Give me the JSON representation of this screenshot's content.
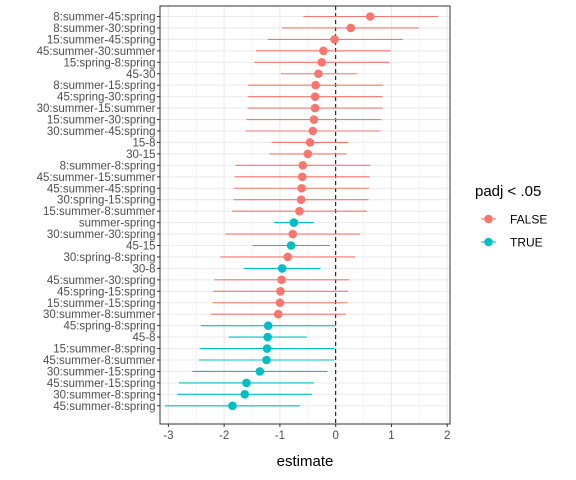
{
  "chart_data": {
    "type": "forest",
    "xlabel": "estimate",
    "ylabel": "",
    "xlim": [
      -3.15,
      2.05
    ],
    "x_ticks": [
      "-3",
      "-2",
      "-1",
      "0",
      "1",
      "2"
    ],
    "x_tick_values": [
      -3,
      -2,
      -1,
      0,
      1,
      2
    ],
    "reference_line_x": 0,
    "grid": true,
    "legend": {
      "title": "padj < .05",
      "placement": "right",
      "entries": [
        {
          "label": "FALSE",
          "color": "#F8766D"
        },
        {
          "label": "TRUE",
          "color": "#00BFC4"
        }
      ]
    },
    "rows": [
      {
        "label": "8:summer-45:spring",
        "estimate": 0.62,
        "low": -0.58,
        "high": 1.84,
        "sig": "FALSE"
      },
      {
        "label": "8:summer-30:spring",
        "estimate": 0.27,
        "low": -0.96,
        "high": 1.49,
        "sig": "FALSE"
      },
      {
        "label": "15:summer-45:spring",
        "estimate": -0.02,
        "low": -1.22,
        "high": 1.2,
        "sig": "FALSE"
      },
      {
        "label": "45:summer-30:summer",
        "estimate": -0.22,
        "low": -1.43,
        "high": 0.99,
        "sig": "FALSE"
      },
      {
        "label": "15:spring-8:spring",
        "estimate": -0.25,
        "low": -1.46,
        "high": 0.96,
        "sig": "FALSE"
      },
      {
        "label": "45-30",
        "estimate": -0.31,
        "low": -0.98,
        "high": 0.38,
        "sig": "FALSE"
      },
      {
        "label": "8:summer-15:spring",
        "estimate": -0.36,
        "low": -1.57,
        "high": 0.85,
        "sig": "FALSE"
      },
      {
        "label": "45:spring-30:spring",
        "estimate": -0.37,
        "low": -1.58,
        "high": 0.84,
        "sig": "FALSE"
      },
      {
        "label": "30:summer-15:summer",
        "estimate": -0.37,
        "low": -1.58,
        "high": 0.84,
        "sig": "FALSE"
      },
      {
        "label": "15:summer-30:spring",
        "estimate": -0.39,
        "low": -1.6,
        "high": 0.82,
        "sig": "FALSE"
      },
      {
        "label": "30:summer-45:spring",
        "estimate": -0.41,
        "low": -1.62,
        "high": 0.8,
        "sig": "FALSE"
      },
      {
        "label": "15-8",
        "estimate": -0.46,
        "low": -1.15,
        "high": 0.23,
        "sig": "FALSE"
      },
      {
        "label": "30-15",
        "estimate": -0.5,
        "low": -1.19,
        "high": 0.19,
        "sig": "FALSE"
      },
      {
        "label": "8:summer-8:spring",
        "estimate": -0.59,
        "low": -1.8,
        "high": 0.62,
        "sig": "FALSE"
      },
      {
        "label": "45:summer-15:summer",
        "estimate": -0.6,
        "low": -1.81,
        "high": 0.61,
        "sig": "FALSE"
      },
      {
        "label": "45:summer-45:spring",
        "estimate": -0.61,
        "low": -1.82,
        "high": 0.6,
        "sig": "FALSE"
      },
      {
        "label": "30:spring-15:spring",
        "estimate": -0.62,
        "low": -1.83,
        "high": 0.59,
        "sig": "FALSE"
      },
      {
        "label": "15:summer-8:summer",
        "estimate": -0.65,
        "low": -1.86,
        "high": 0.56,
        "sig": "FALSE"
      },
      {
        "label": "summer-spring",
        "estimate": -0.75,
        "low": -1.11,
        "high": -0.39,
        "sig": "TRUE"
      },
      {
        "label": "30:summer-30:spring",
        "estimate": -0.77,
        "low": -1.98,
        "high": 0.44,
        "sig": "FALSE"
      },
      {
        "label": "45-15",
        "estimate": -0.8,
        "low": -1.49,
        "high": -0.11,
        "sig": "TRUE"
      },
      {
        "label": "30:spring-8:spring",
        "estimate": -0.86,
        "low": -2.07,
        "high": 0.35,
        "sig": "FALSE"
      },
      {
        "label": "30-8",
        "estimate": -0.96,
        "low": -1.65,
        "high": -0.27,
        "sig": "TRUE"
      },
      {
        "label": "45:summer-30:spring",
        "estimate": -0.97,
        "low": -2.18,
        "high": 0.24,
        "sig": "FALSE"
      },
      {
        "label": "45:spring-15:spring",
        "estimate": -0.99,
        "low": -2.2,
        "high": 0.22,
        "sig": "FALSE"
      },
      {
        "label": "15:summer-15:spring",
        "estimate": -1.0,
        "low": -2.21,
        "high": 0.21,
        "sig": "FALSE"
      },
      {
        "label": "30:summer-8:summer",
        "estimate": -1.03,
        "low": -2.24,
        "high": 0.18,
        "sig": "FALSE"
      },
      {
        "label": "45:spring-8:spring",
        "estimate": -1.21,
        "low": -2.42,
        "high": 0.0,
        "sig": "TRUE"
      },
      {
        "label": "45-8",
        "estimate": -1.22,
        "low": -1.92,
        "high": -0.52,
        "sig": "TRUE"
      },
      {
        "label": "15:summer-8:spring",
        "estimate": -1.23,
        "low": -2.44,
        "high": -0.02,
        "sig": "TRUE"
      },
      {
        "label": "45:summer-8:summer",
        "estimate": -1.24,
        "low": -2.45,
        "high": -0.03,
        "sig": "TRUE"
      },
      {
        "label": "30:summer-15:spring",
        "estimate": -1.36,
        "low": -2.57,
        "high": -0.15,
        "sig": "TRUE"
      },
      {
        "label": "45:summer-15:spring",
        "estimate": -1.6,
        "low": -2.81,
        "high": -0.39,
        "sig": "TRUE"
      },
      {
        "label": "30:summer-8:spring",
        "estimate": -1.63,
        "low": -2.84,
        "high": -0.42,
        "sig": "TRUE"
      },
      {
        "label": "45:summer-8:spring",
        "estimate": -1.85,
        "low": -3.06,
        "high": -0.64,
        "sig": "TRUE"
      }
    ]
  }
}
